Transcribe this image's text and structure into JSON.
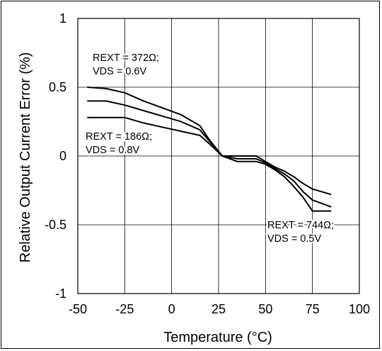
{
  "chart_data": {
    "type": "line",
    "xlabel": "Temperature (°C)",
    "ylabel": "Relative Output Current Error (%)",
    "xlim": [
      -50,
      100
    ],
    "ylim": [
      -1,
      1
    ],
    "x_ticks": [
      "-50",
      "-25",
      "0",
      "25",
      "50",
      "75",
      "100"
    ],
    "y_ticks": [
      "1",
      "0.5",
      "0",
      "-0.5",
      "-1"
    ],
    "grid": true,
    "legend": "none",
    "series": [
      {
        "x": [
          -45,
          -35,
          -25,
          -15,
          -5,
          5,
          15,
          20,
          27,
          35,
          45,
          50,
          55,
          60,
          65,
          70,
          75,
          85
        ],
        "y": [
          0.5,
          0.49,
          0.46,
          0.4,
          0.35,
          0.3,
          0.22,
          0.12,
          0.0,
          -0.04,
          -0.04,
          -0.06,
          -0.1,
          -0.15,
          -0.22,
          -0.3,
          -0.4,
          -0.4
        ]
      },
      {
        "x": [
          -45,
          -35,
          -25,
          -15,
          -5,
          5,
          15,
          20,
          27,
          35,
          45,
          50,
          55,
          60,
          65,
          70,
          75,
          85
        ],
        "y": [
          0.4,
          0.4,
          0.37,
          0.33,
          0.29,
          0.25,
          0.19,
          0.11,
          0.0,
          -0.02,
          -0.02,
          -0.05,
          -0.09,
          -0.13,
          -0.18,
          -0.26,
          -0.32,
          -0.37
        ]
      },
      {
        "x": [
          -45,
          -30,
          -25,
          -15,
          -5,
          5,
          15,
          20,
          27,
          35,
          45,
          50,
          55,
          60,
          65,
          70,
          75,
          85
        ],
        "y": [
          0.28,
          0.28,
          0.28,
          0.24,
          0.21,
          0.18,
          0.15,
          0.09,
          0.0,
          0.0,
          0.0,
          -0.04,
          -0.08,
          -0.11,
          -0.15,
          -0.2,
          -0.24,
          -0.28
        ]
      }
    ],
    "annotations": [
      {
        "line1": "REXT = 372Ω;",
        "line2": "VDS = 0.6V"
      },
      {
        "line1": "REXT = 186Ω;",
        "line2": "VDS = 0.8V"
      },
      {
        "line1": "REXT = 744Ω;",
        "line2": "VDS = 0.5V"
      }
    ]
  }
}
